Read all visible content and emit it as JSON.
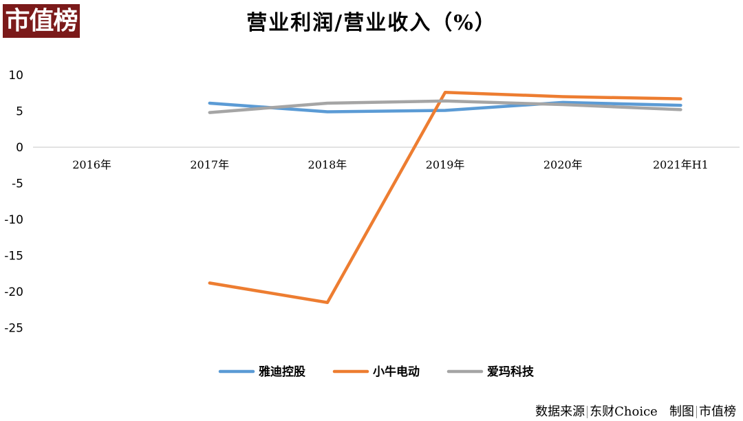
{
  "logo": "市值榜",
  "chart_data": {
    "type": "line",
    "title": "营业利润/营业收入（%）",
    "categories": [
      "2016年",
      "2017年",
      "2018年",
      "2019年",
      "2020年",
      "2021年H1"
    ],
    "ylim": [
      -25,
      10
    ],
    "yticks": [
      10,
      5,
      0,
      -5,
      -10,
      -15,
      -20,
      -25
    ],
    "grid": false,
    "legend_position": "bottom",
    "series": [
      {
        "name": "雅迪控股",
        "color": "#5b9bd5",
        "values": [
          null,
          6.1,
          4.9,
          5.1,
          6.2,
          5.8
        ]
      },
      {
        "name": "小牛电动",
        "color": "#ed7d31",
        "values": [
          null,
          -18.8,
          -21.5,
          7.6,
          7.0,
          6.7
        ]
      },
      {
        "name": "爱玛科技",
        "color": "#a5a5a5",
        "values": [
          null,
          4.8,
          6.1,
          6.4,
          5.9,
          5.2
        ]
      }
    ]
  },
  "source": {
    "label": "数据来源",
    "source_name": "东财Choice",
    "made_label": "制图",
    "maker": "市值榜"
  }
}
